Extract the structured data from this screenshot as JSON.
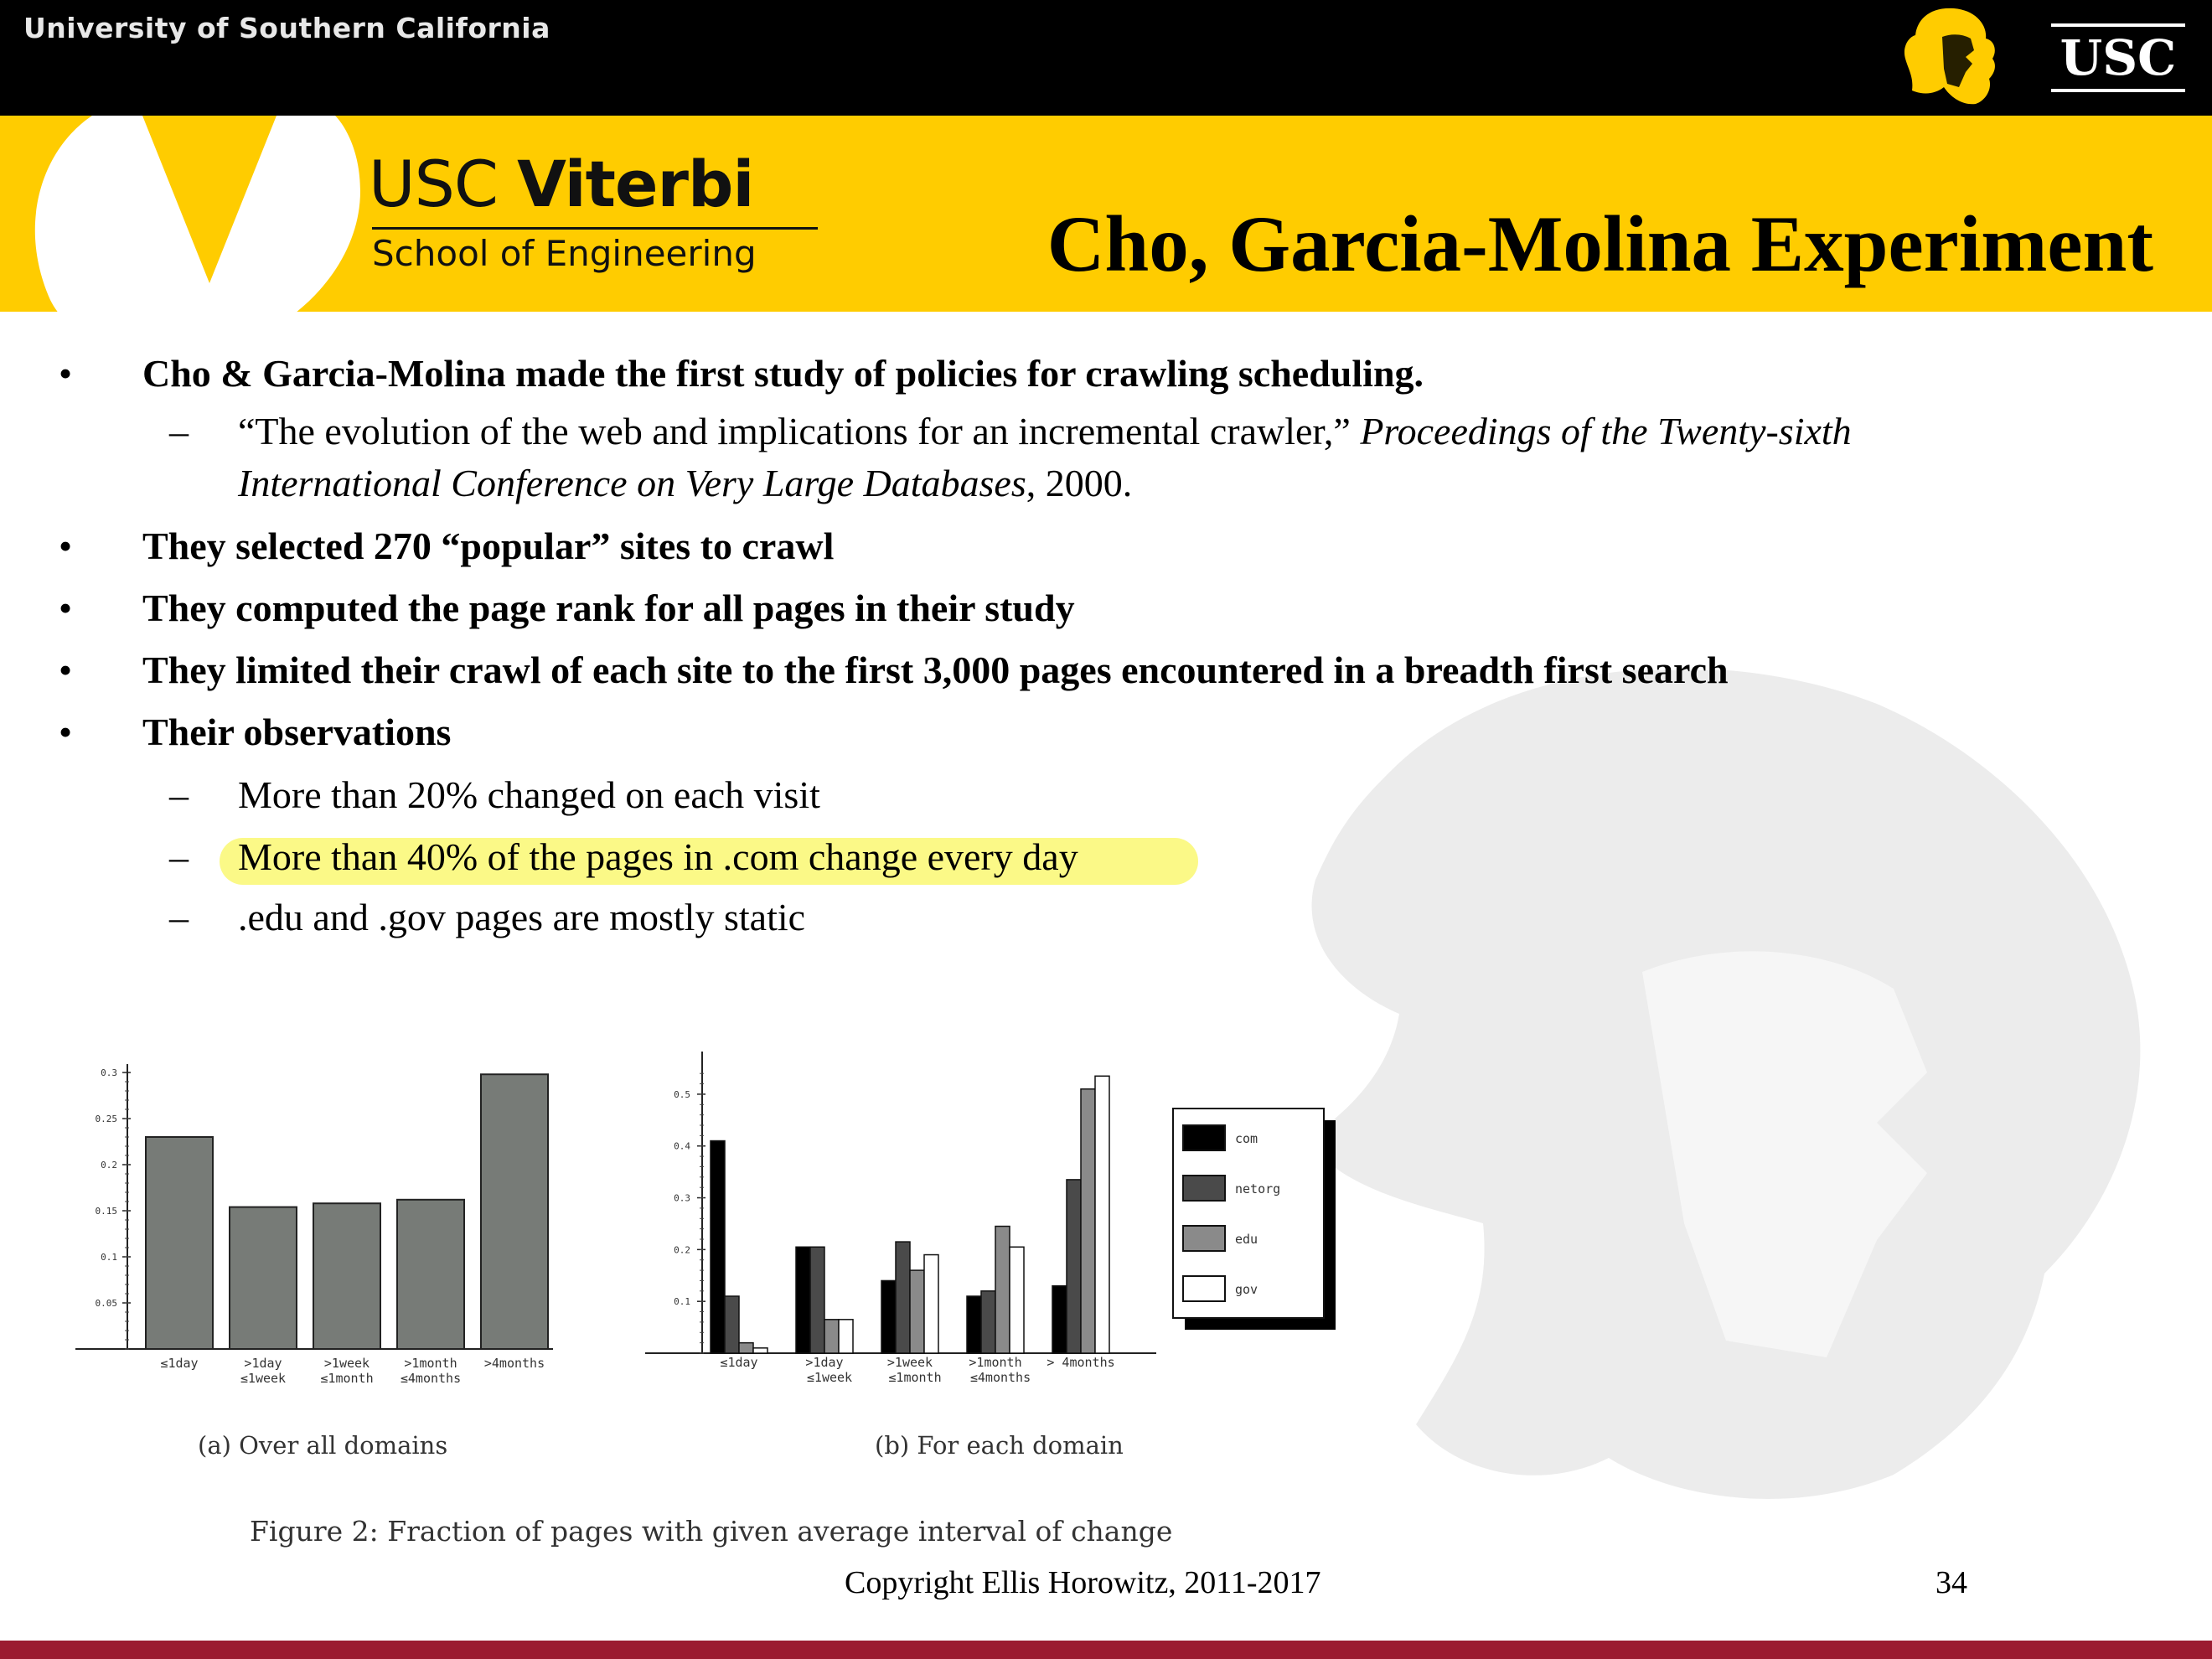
{
  "header": {
    "university": "University of Southern California",
    "usc_mark": "USC",
    "viterbi_usc": "USC",
    "viterbi_name": "Viterbi",
    "viterbi_school": "School of Engineering",
    "title": "Cho, Garcia-Molina Experiment"
  },
  "bullets": [
    "Cho & Garcia-Molina made the first study of policies for crawling scheduling.",
    "They selected 270 “popular” sites to crawl",
    "They computed the page rank for all pages in their study",
    "They limited their crawl of each site to the first 3,000 pages encountered in a breadth first search",
    "Their observations"
  ],
  "citation": {
    "line1_plain": "“The evolution of the web and implications for an incremental crawler,” ",
    "line1_italic": "Proceedings of the Twenty-sixth",
    "line2_italic": "International Conference on Very Large Databases",
    "line2_plain": ", 2000."
  },
  "observations": [
    "More than 20% changed on each visit",
    "More than 40% of the pages in .com change every day",
    ".edu and .gov pages are mostly static"
  ],
  "bullet_symbol": "•",
  "dash_symbol": "–",
  "figure": {
    "caption": "Figure 2:  Fraction of pages with given average interval of change",
    "sub_a": "(a) Over all domains",
    "sub_b": "(b) For each domain"
  },
  "chart_data": [
    {
      "type": "bar",
      "categories": [
        "≤1day",
        ">1day ≤1week",
        ">1week ≤1month",
        ">1month ≤4months",
        ">4months"
      ],
      "values": [
        0.23,
        0.154,
        0.158,
        0.162,
        0.298
      ],
      "ylim": [
        0,
        0.3
      ],
      "yticks": [
        "0.05",
        "0.1",
        "0.15",
        "0.2",
        "0.25",
        "0.3"
      ],
      "color": "#777b77"
    },
    {
      "type": "bar",
      "categories": [
        "≤1day",
        ">1day ≤1week",
        ">1week ≤1month",
        ">1month ≤4months",
        "> 4months"
      ],
      "series": [
        {
          "name": "com",
          "values": [
            0.41,
            0.205,
            0.14,
            0.11,
            0.13
          ],
          "color": "#000000"
        },
        {
          "name": "netorg",
          "values": [
            0.11,
            0.205,
            0.215,
            0.12,
            0.335
          ],
          "color": "#4a4a4a"
        },
        {
          "name": "edu",
          "values": [
            0.02,
            0.065,
            0.16,
            0.245,
            0.51
          ],
          "color": "#8a8a8a"
        },
        {
          "name": "gov",
          "values": [
            0.01,
            0.065,
            0.19,
            0.205,
            0.535
          ],
          "color": "#ffffff"
        }
      ],
      "ylim": [
        0,
        0.55
      ],
      "yticks": [
        "0.1",
        "0.2",
        "0.3",
        "0.4",
        "0.5"
      ],
      "legend": "right"
    }
  ],
  "footer": {
    "copyright": "Copyright Ellis Horowitz, 2011-2017",
    "page": "34"
  }
}
